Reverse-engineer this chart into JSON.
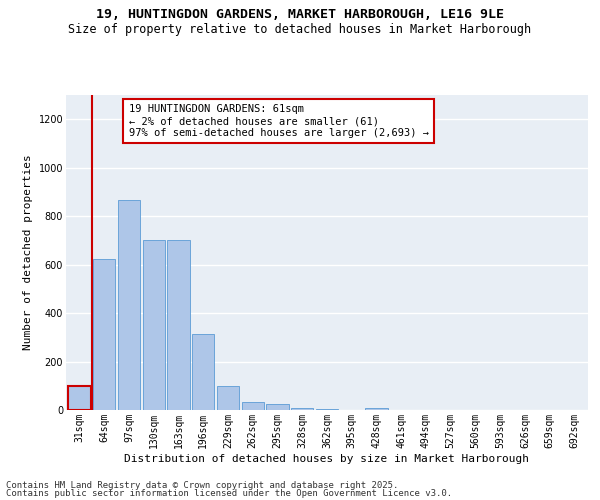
{
  "title1": "19, HUNTINGDON GARDENS, MARKET HARBOROUGH, LE16 9LE",
  "title2": "Size of property relative to detached houses in Market Harborough",
  "xlabel": "Distribution of detached houses by size in Market Harborough",
  "ylabel": "Number of detached properties",
  "categories": [
    "31sqm",
    "64sqm",
    "97sqm",
    "130sqm",
    "163sqm",
    "196sqm",
    "229sqm",
    "262sqm",
    "295sqm",
    "328sqm",
    "362sqm",
    "395sqm",
    "428sqm",
    "461sqm",
    "494sqm",
    "527sqm",
    "560sqm",
    "593sqm",
    "626sqm",
    "659sqm",
    "692sqm"
  ],
  "values": [
    100,
    625,
    865,
    700,
    700,
    315,
    100,
    35,
    25,
    10,
    5,
    0,
    10,
    0,
    0,
    0,
    0,
    0,
    0,
    0,
    0
  ],
  "bar_color": "#aec6e8",
  "bar_edge_color": "#5b9bd5",
  "highlight_bar_edge_color": "#cc0000",
  "annotation_text": "19 HUNTINGDON GARDENS: 61sqm\n← 2% of detached houses are smaller (61)\n97% of semi-detached houses are larger (2,693) →",
  "annotation_box_edge_color": "#cc0000",
  "vertical_line_color": "#cc0000",
  "ylim": [
    0,
    1300
  ],
  "yticks": [
    0,
    200,
    400,
    600,
    800,
    1000,
    1200
  ],
  "background_color": "#e8eef5",
  "grid_color": "#ffffff",
  "footer1": "Contains HM Land Registry data © Crown copyright and database right 2025.",
  "footer2": "Contains public sector information licensed under the Open Government Licence v3.0.",
  "title_fontsize": 9.5,
  "subtitle_fontsize": 8.5,
  "axis_label_fontsize": 8,
  "tick_fontsize": 7,
  "annotation_fontsize": 7.5,
  "footer_fontsize": 6.5
}
